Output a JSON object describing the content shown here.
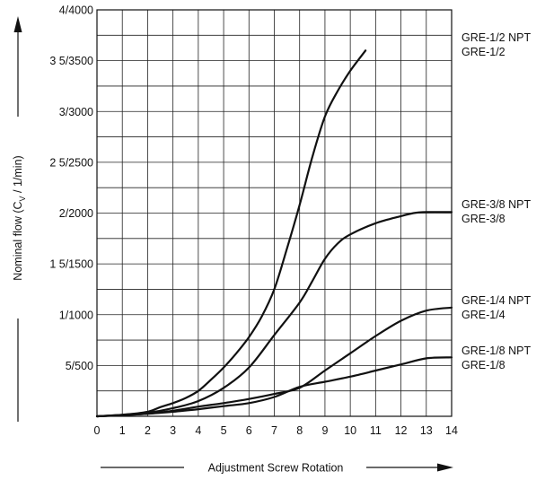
{
  "chart_data": {
    "type": "line",
    "xlabel": "Adjustment Screw Rotation",
    "ylabel_parts": {
      "pre": "Nominal flow (C",
      "sub": "V",
      "post": " / 1/min)"
    },
    "xlim": [
      0,
      14
    ],
    "ylim": [
      0,
      4000
    ],
    "x_ticks": [
      "0",
      "1",
      "2",
      "3",
      "4",
      "5",
      "6",
      "7",
      "8",
      "9",
      "10",
      "11",
      "12",
      "13",
      "14"
    ],
    "y_ticks": [
      {
        "label": "5/500",
        "value": 500
      },
      {
        "label": "1/1000",
        "value": 1000
      },
      {
        "label": "1 5/1500",
        "value": 1500
      },
      {
        "label": "2/2000",
        "value": 2000
      },
      {
        "label": "2 5/2500",
        "value": 2500
      },
      {
        "label": "3/3000",
        "value": 3000
      },
      {
        "label": "3 5/3500",
        "value": 3500
      },
      {
        "label": "4/4000",
        "value": 4000
      }
    ],
    "grid": {
      "x_step": 1,
      "y_step": 250
    },
    "series": [
      {
        "labels": [
          "GRE-1/2 NPT",
          "GRE-1/2"
        ],
        "x": [
          0,
          1,
          2,
          2.5,
          3,
          3.5,
          4,
          4.5,
          5,
          5.5,
          6,
          6.5,
          7,
          7.5,
          8,
          8.5,
          9,
          9.5,
          10,
          10.6
        ],
        "y": [
          0,
          15,
          45,
          90,
          130,
          180,
          250,
          360,
          480,
          620,
          780,
          980,
          1250,
          1650,
          2080,
          2550,
          2950,
          3200,
          3400,
          3600
        ]
      },
      {
        "labels": [
          "GRE-3/8 NPT",
          "GRE-3/8"
        ],
        "x": [
          0,
          1,
          2,
          3,
          4,
          5,
          6,
          7,
          8,
          8.5,
          9,
          9.5,
          10,
          11,
          12,
          12.5,
          13,
          14
        ],
        "y": [
          0,
          15,
          35,
          80,
          150,
          280,
          480,
          800,
          1120,
          1330,
          1550,
          1700,
          1790,
          1900,
          1970,
          2000,
          2010,
          2010
        ]
      },
      {
        "labels": [
          "GRE-1/4 NPT",
          "GRE-1/4"
        ],
        "x": [
          0,
          1,
          2,
          3,
          4,
          5,
          6,
          7,
          8,
          9,
          10,
          11,
          12,
          13,
          14
        ],
        "y": [
          0,
          12,
          25,
          55,
          95,
          130,
          170,
          220,
          280,
          450,
          620,
          790,
          940,
          1040,
          1070
        ]
      },
      {
        "labels": [
          "GRE-1/8 NPT",
          "GRE-1/8"
        ],
        "x": [
          0,
          1,
          2,
          3,
          4,
          5,
          6,
          7,
          8,
          9,
          10,
          11,
          12,
          13,
          14
        ],
        "y": [
          0,
          10,
          25,
          45,
          70,
          100,
          130,
          190,
          290,
          340,
          390,
          450,
          510,
          570,
          580
        ]
      }
    ]
  }
}
